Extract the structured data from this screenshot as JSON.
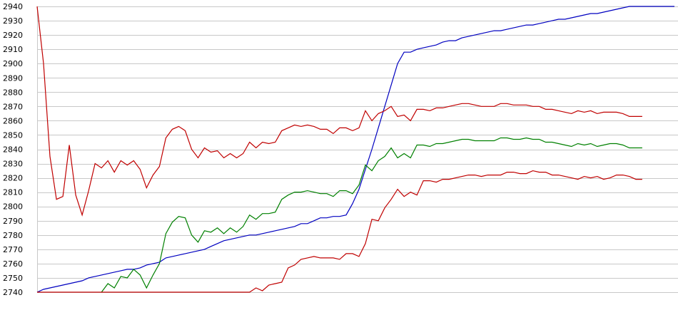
{
  "chart_data": {
    "type": "line",
    "title": "",
    "xlabel": "",
    "ylabel": "",
    "ylim": [
      2740,
      2940
    ],
    "yticks": [
      2740,
      2750,
      2760,
      2770,
      2780,
      2790,
      2800,
      2810,
      2820,
      2830,
      2840,
      2850,
      2860,
      2870,
      2880,
      2890,
      2900,
      2910,
      2920,
      2930,
      2940
    ],
    "grid": true,
    "legend": "none",
    "series": [
      {
        "color": "#0000c0",
        "x": [
          0,
          1,
          2,
          3,
          4,
          5,
          6,
          7,
          8,
          9,
          10,
          11,
          12,
          13,
          14,
          15,
          16,
          17,
          18,
          19,
          20,
          21,
          22,
          23,
          24,
          25,
          26,
          27,
          28,
          29,
          30,
          31,
          32,
          33,
          34,
          35,
          36,
          37,
          38,
          39,
          40,
          41,
          42,
          43,
          44,
          45,
          46,
          47,
          48,
          49,
          50,
          51,
          52,
          53,
          54,
          55,
          56,
          57,
          58,
          59,
          60,
          61,
          62,
          63,
          64,
          65,
          66,
          67,
          68,
          69,
          70,
          71,
          72,
          73,
          74,
          75,
          76,
          77,
          78,
          79,
          80,
          81,
          82,
          83,
          84,
          85,
          86,
          87,
          88,
          89,
          90,
          91,
          92,
          93,
          94,
          95,
          96,
          97,
          98,
          99
        ],
        "values": [
          2740,
          2742,
          2743,
          2744,
          2745,
          2746,
          2747,
          2748,
          2750,
          2751,
          2752,
          2753,
          2754,
          2755,
          2756,
          2756,
          2757,
          2759,
          2760,
          2761,
          2764,
          2765,
          2766,
          2767,
          2768,
          2769,
          2770,
          2772,
          2774,
          2776,
          2777,
          2778,
          2779,
          2780,
          2780,
          2781,
          2782,
          2783,
          2784,
          2785,
          2786,
          2788,
          2788,
          2790,
          2792,
          2792,
          2793,
          2793,
          2794,
          2802,
          2812,
          2826,
          2840,
          2855,
          2870,
          2885,
          2900,
          2908,
          2908,
          2910,
          2911,
          2912,
          2913,
          2915,
          2916,
          2916,
          2918,
          2919,
          2920,
          2921,
          2922,
          2923,
          2923,
          2924,
          2925,
          2926,
          2927,
          2927,
          2928,
          2929,
          2930,
          2931,
          2931,
          2932,
          2933,
          2934,
          2935,
          2935,
          2936,
          2937,
          2938,
          2939,
          2940,
          2940,
          2940,
          2940,
          2940,
          2940,
          2940,
          2940
        ]
      },
      {
        "color": "#c00000",
        "x": [
          0,
          1,
          2,
          3,
          4,
          5,
          6,
          7,
          8,
          9,
          10,
          11,
          12,
          13,
          14,
          15,
          16,
          17,
          18,
          19,
          20,
          21,
          22,
          23,
          24,
          25,
          26,
          27,
          28,
          29,
          30,
          31,
          32,
          33,
          34,
          35,
          36,
          37,
          38,
          39,
          40,
          41,
          42,
          43,
          44,
          45,
          46,
          47,
          48,
          49,
          50,
          51,
          52,
          53,
          54,
          55,
          56,
          57,
          58,
          59,
          60,
          61,
          62,
          63,
          64,
          65,
          66,
          67,
          68,
          69,
          70,
          71,
          72,
          73,
          74,
          75,
          76,
          77,
          78,
          79,
          80,
          81,
          82,
          83,
          84,
          85,
          86,
          87,
          88,
          89,
          90,
          91,
          92,
          93,
          94
        ],
        "values": [
          2940,
          2900,
          2835,
          2805,
          2807,
          2843,
          2808,
          2794,
          2811,
          2830,
          2827,
          2832,
          2824,
          2832,
          2829,
          2832,
          2826,
          2813,
          2822,
          2828,
          2848,
          2854,
          2856,
          2853,
          2840,
          2834,
          2841,
          2838,
          2839,
          2834,
          2837,
          2834,
          2837,
          2845,
          2841,
          2845,
          2844,
          2845,
          2853,
          2855,
          2857,
          2856,
          2857,
          2856,
          2854,
          2854,
          2851,
          2855,
          2855,
          2853,
          2855,
          2867,
          2860,
          2865,
          2867,
          2870,
          2863,
          2864,
          2860,
          2868,
          2868,
          2867,
          2869,
          2869,
          2870,
          2871,
          2872,
          2872,
          2871,
          2870,
          2870,
          2870,
          2872,
          2872,
          2871,
          2871,
          2871,
          2870,
          2870,
          2868,
          2868,
          2867,
          2866,
          2865,
          2867,
          2866,
          2867,
          2865,
          2866,
          2866,
          2866,
          2865,
          2863,
          2863,
          2863
        ]
      },
      {
        "color": "#008000",
        "x": [
          10,
          11,
          12,
          13,
          14,
          15,
          16,
          17,
          18,
          19,
          20,
          21,
          22,
          23,
          24,
          25,
          26,
          27,
          28,
          29,
          30,
          31,
          32,
          33,
          34,
          35,
          36,
          37,
          38,
          39,
          40,
          41,
          42,
          43,
          44,
          45,
          46,
          47,
          48,
          49,
          50,
          51,
          52,
          53,
          54,
          55,
          56,
          57,
          58,
          59,
          60,
          61,
          62,
          63,
          64,
          65,
          66,
          67,
          68,
          69,
          70,
          71,
          72,
          73,
          74,
          75,
          76,
          77,
          78,
          79,
          80,
          81,
          82,
          83,
          84,
          85,
          86,
          87,
          88,
          89,
          90,
          91,
          92,
          93,
          94
        ],
        "values": [
          2740,
          2746,
          2743,
          2751,
          2750,
          2756,
          2752,
          2743,
          2752,
          2760,
          2781,
          2789,
          2793,
          2792,
          2780,
          2775,
          2783,
          2782,
          2785,
          2781,
          2785,
          2782,
          2786,
          2794,
          2791,
          2795,
          2795,
          2796,
          2805,
          2808,
          2810,
          2810,
          2811,
          2810,
          2809,
          2809,
          2807,
          2811,
          2811,
          2809,
          2815,
          2829,
          2825,
          2832,
          2835,
          2841,
          2834,
          2837,
          2834,
          2843,
          2843,
          2842,
          2844,
          2844,
          2845,
          2846,
          2847,
          2847,
          2846,
          2846,
          2846,
          2846,
          2848,
          2848,
          2847,
          2847,
          2848,
          2847,
          2847,
          2845,
          2845,
          2844,
          2843,
          2842,
          2844,
          2843,
          2844,
          2842,
          2843,
          2844,
          2844,
          2843,
          2841,
          2841,
          2841
        ]
      },
      {
        "color": "#c00000",
        "x": [
          0,
          1,
          2,
          3,
          4,
          5,
          6,
          7,
          8,
          9,
          10,
          11,
          12,
          13,
          14,
          15,
          16,
          17,
          18,
          19,
          20,
          21,
          22,
          23,
          24,
          25,
          26,
          27,
          28,
          29,
          30,
          31,
          32,
          33,
          34,
          35,
          36,
          37,
          38,
          39,
          40,
          41,
          42,
          43,
          44,
          45,
          46,
          47,
          48,
          49,
          50,
          51,
          52,
          53,
          54,
          55,
          56,
          57,
          58,
          59,
          60,
          61,
          62,
          63,
          64,
          65,
          66,
          67,
          68,
          69,
          70,
          71,
          72,
          73,
          74,
          75,
          76,
          77,
          78,
          79,
          80,
          81,
          82,
          83,
          84,
          85,
          86,
          87,
          88,
          89,
          90,
          91,
          92,
          93,
          94
        ],
        "values": [
          2740,
          2740,
          2740,
          2740,
          2740,
          2740,
          2740,
          2740,
          2740,
          2740,
          2740,
          2740,
          2740,
          2740,
          2740,
          2740,
          2740,
          2740,
          2740,
          2740,
          2740,
          2740,
          2740,
          2740,
          2740,
          2740,
          2740,
          2740,
          2740,
          2740,
          2740,
          2740,
          2740,
          2740,
          2743,
          2741,
          2745,
          2746,
          2747,
          2757,
          2759,
          2763,
          2764,
          2765,
          2764,
          2764,
          2764,
          2763,
          2767,
          2767,
          2765,
          2774,
          2791,
          2790,
          2799,
          2805,
          2812,
          2807,
          2810,
          2808,
          2818,
          2818,
          2817,
          2819,
          2819,
          2820,
          2821,
          2822,
          2822,
          2821,
          2822,
          2822,
          2822,
          2824,
          2824,
          2823,
          2823,
          2825,
          2824,
          2824,
          2822,
          2822,
          2821,
          2820,
          2819,
          2821,
          2820,
          2821,
          2819,
          2820,
          2822,
          2822,
          2821,
          2819,
          2819
        ]
      }
    ]
  }
}
